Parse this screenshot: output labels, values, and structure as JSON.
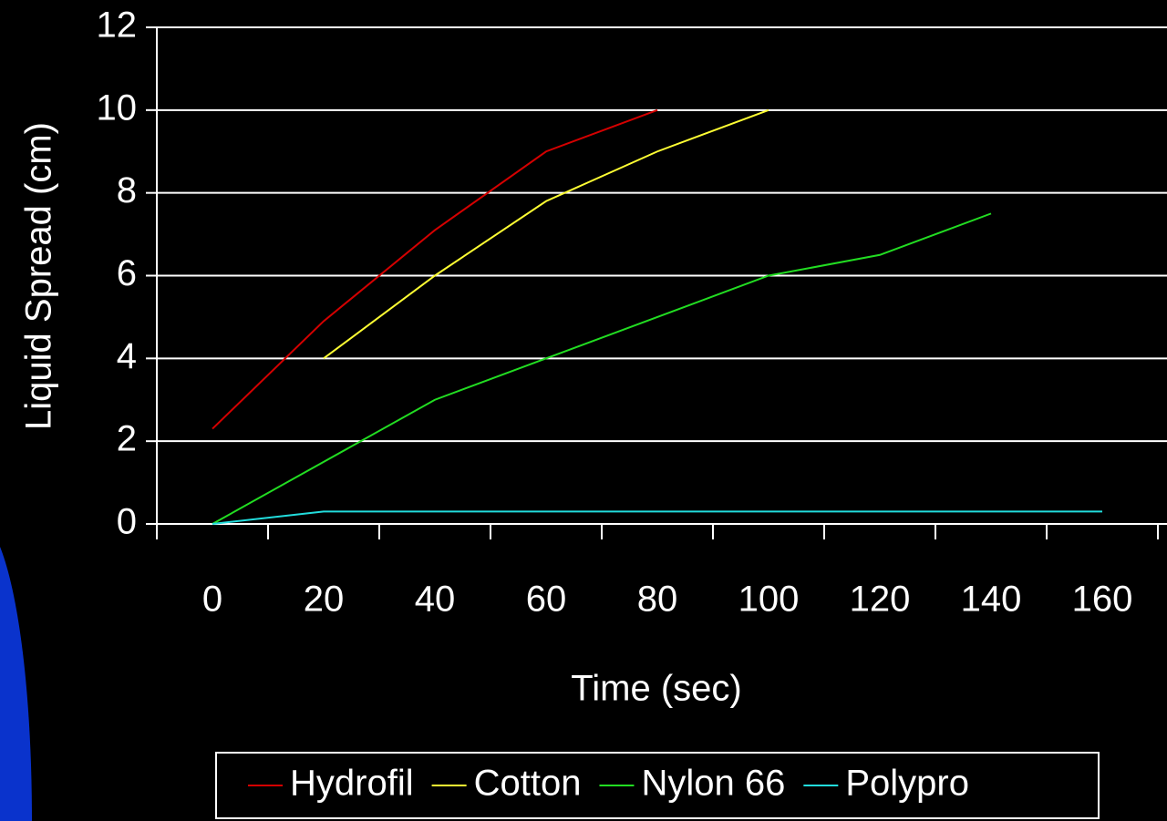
{
  "chart_data": {
    "type": "line",
    "xlabel": "Time (sec)",
    "ylabel": "Liquid Spread (cm)",
    "categories": [
      "0",
      "20",
      "40",
      "60",
      "80",
      "100",
      "120",
      "140",
      "160"
    ],
    "series": [
      {
        "name": "Hydrofil",
        "color": "#d40000",
        "values": [
          2.3,
          4.9,
          7.1,
          9.0,
          10,
          null,
          null,
          null,
          null
        ]
      },
      {
        "name": "Cotton",
        "color": "#ffff33",
        "values": [
          null,
          4.0,
          6.0,
          7.8,
          9.0,
          10,
          null,
          null,
          null
        ]
      },
      {
        "name": "Nylon 66",
        "color": "#22dd22",
        "values": [
          0,
          1.5,
          3.0,
          4.0,
          5.0,
          6.0,
          6.5,
          7.5,
          null
        ]
      },
      {
        "name": "Polypro",
        "color": "#22dddd",
        "values": [
          0,
          0.3,
          0.3,
          0.3,
          0.3,
          0.3,
          0.3,
          0.3,
          0.3
        ]
      }
    ],
    "ylim": [
      0,
      12
    ],
    "yticks": [
      0,
      2,
      4,
      6,
      8,
      10,
      12
    ],
    "grid": true
  }
}
